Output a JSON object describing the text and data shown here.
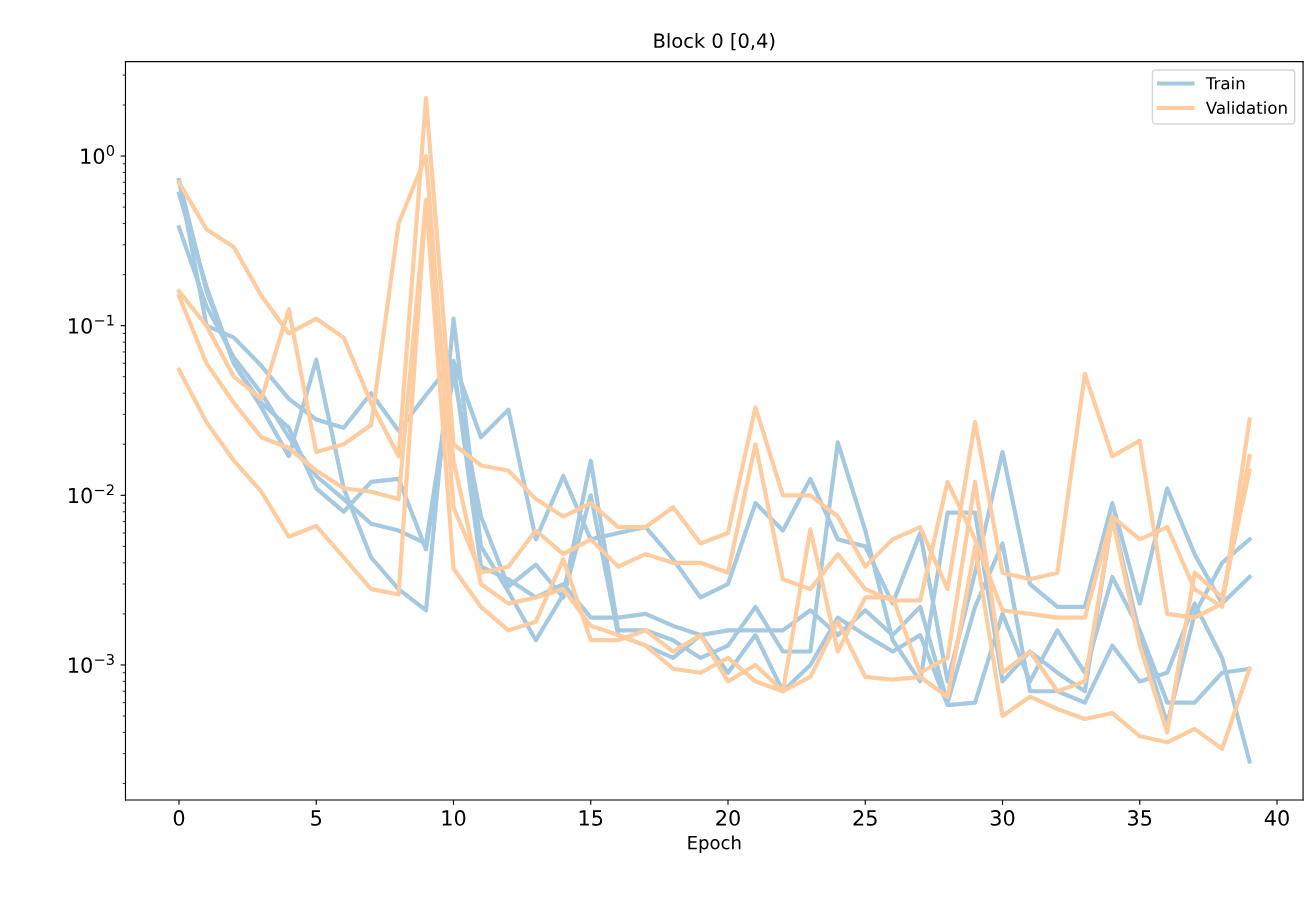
{
  "chart_data": {
    "type": "line",
    "title": "Block 0 [0,4)",
    "xlabel": "Epoch",
    "x": [
      0,
      1,
      2,
      3,
      4,
      5,
      6,
      7,
      8,
      9,
      10,
      11,
      12,
      13,
      14,
      15,
      16,
      17,
      18,
      19,
      20,
      21,
      22,
      23,
      24,
      25,
      26,
      27,
      28,
      29,
      30,
      31,
      32,
      33,
      34,
      35,
      36,
      37,
      38,
      39
    ],
    "xlim": [
      -1.95,
      40.95
    ],
    "xticks": [
      0,
      5,
      10,
      15,
      20,
      25,
      30,
      35,
      40
    ],
    "log": "y",
    "ylim": [
      0.00016,
      3.6
    ],
    "yticks": [
      {
        "value": 0.001,
        "label": "10$^{−3}$"
      },
      {
        "value": 0.01,
        "label": "10$^{−2}$"
      },
      {
        "value": 0.1,
        "label": "10$^{−1}$"
      },
      {
        "value": 1,
        "label": "10$^{0}$"
      }
    ],
    "legend": "top right",
    "grid": false,
    "series": [
      {
        "name": "Train",
        "color": "#a5c9e1",
        "values": [
          0.72,
          0.1,
          0.085,
          0.058,
          0.037,
          0.028,
          0.025,
          0.04,
          0.024,
          0.039,
          0.062,
          0.022,
          0.032,
          0.0055,
          0.013,
          0.0055,
          0.006,
          0.0065,
          0.0042,
          0.0025,
          0.003,
          0.009,
          0.0062,
          0.0125,
          0.0055,
          0.005,
          0.0023,
          0.006,
          0.0008,
          0.0035,
          0.018,
          0.003,
          0.0022,
          0.0022,
          0.009,
          0.0023,
          0.011,
          0.0045,
          0.0023,
          0.0033
        ]
      },
      {
        "color": "#a5c9e1",
        "values": [
          0.6,
          0.17,
          0.06,
          0.033,
          0.017,
          0.063,
          0.011,
          0.0043,
          0.0028,
          0.0021,
          0.11,
          0.005,
          0.0027,
          0.0014,
          0.0026,
          0.016,
          0.0016,
          0.0016,
          0.0014,
          0.0011,
          0.0013,
          0.0022,
          0.0012,
          0.0012,
          0.0205,
          0.0062,
          0.0014,
          0.0008,
          0.0079,
          0.0079,
          0.0008,
          0.0012,
          0.0009,
          0.0007,
          0.0075,
          0.0015,
          0.00045,
          0.002,
          0.004,
          0.0055
        ]
      },
      {
        "color": "#a5c9e1",
        "values": [
          0.38,
          0.13,
          0.065,
          0.04,
          0.022,
          0.013,
          0.0095,
          0.0068,
          0.0062,
          0.0052,
          0.06,
          0.0038,
          0.0032,
          0.0025,
          0.003,
          0.0019,
          0.0019,
          0.002,
          0.0017,
          0.0015,
          0.0016,
          0.0016,
          0.0016,
          0.0021,
          0.0015,
          0.0021,
          0.0015,
          0.0022,
          0.0006,
          0.0022,
          0.0052,
          0.0007,
          0.0007,
          0.0006,
          0.0013,
          0.0008,
          0.0009,
          0.0023,
          0.0011,
          0.00027
        ]
      },
      {
        "color": "#a5c9e1",
        "values": [
          0.72,
          0.16,
          0.06,
          0.035,
          0.025,
          0.011,
          0.008,
          0.012,
          0.0125,
          0.0048,
          0.052,
          0.0075,
          0.0029,
          0.0039,
          0.0025,
          0.01,
          0.0015,
          0.0013,
          0.0011,
          0.0015,
          0.0009,
          0.0015,
          0.0007,
          0.001,
          0.0019,
          0.0015,
          0.0012,
          0.0015,
          0.00058,
          0.0006,
          0.002,
          0.0008,
          0.0016,
          0.0009,
          0.0033,
          0.0016,
          0.0006,
          0.0006,
          0.0009,
          0.00095
        ]
      },
      {
        "name": "Validation",
        "color": "#ffcc9f",
        "values": [
          0.7,
          0.37,
          0.29,
          0.15,
          0.09,
          0.11,
          0.085,
          0.035,
          0.017,
          2.2,
          0.02,
          0.015,
          0.014,
          0.0095,
          0.0075,
          0.009,
          0.0065,
          0.0065,
          0.0085,
          0.0052,
          0.006,
          0.033,
          0.01,
          0.01,
          0.0075,
          0.0038,
          0.0055,
          0.0065,
          0.0028,
          0.027,
          0.0035,
          0.0032,
          0.0035,
          0.052,
          0.017,
          0.021,
          0.002,
          0.0019,
          0.0023,
          0.017
        ]
      },
      {
        "color": "#ffcc9f",
        "values": [
          0.16,
          0.1,
          0.05,
          0.037,
          0.125,
          0.018,
          0.02,
          0.026,
          0.4,
          1.0,
          0.0085,
          0.0035,
          0.0038,
          0.0062,
          0.0045,
          0.0055,
          0.0038,
          0.0045,
          0.004,
          0.004,
          0.0035,
          0.02,
          0.0032,
          0.0028,
          0.0045,
          0.0028,
          0.0024,
          0.0024,
          0.012,
          0.0055,
          0.0021,
          0.002,
          0.0019,
          0.0019,
          0.0075,
          0.0055,
          0.0065,
          0.0028,
          0.0022,
          0.028
        ]
      },
      {
        "color": "#ffcc9f",
        "values": [
          0.15,
          0.06,
          0.035,
          0.022,
          0.019,
          0.014,
          0.011,
          0.0105,
          0.0095,
          0.55,
          0.0037,
          0.0022,
          0.0016,
          0.0018,
          0.0042,
          0.0014,
          0.0014,
          0.0016,
          0.0012,
          0.0015,
          0.0008,
          0.001,
          0.0007,
          0.0063,
          0.0012,
          0.0025,
          0.0025,
          0.0009,
          0.0011,
          0.012,
          0.0009,
          0.0012,
          0.0007,
          0.0008,
          0.0073,
          0.0013,
          0.0004,
          0.0035,
          0.0025,
          0.014
        ]
      },
      {
        "color": "#ffcc9f",
        "values": [
          0.055,
          0.027,
          0.016,
          0.0105,
          0.0057,
          0.0066,
          0.0043,
          0.0028,
          0.0026,
          0.55,
          0.016,
          0.003,
          0.0023,
          0.0025,
          0.0028,
          0.0017,
          0.0015,
          0.0013,
          0.00095,
          0.0009,
          0.0011,
          0.0008,
          0.0007,
          0.00085,
          0.0018,
          0.00085,
          0.00082,
          0.00085,
          0.00065,
          0.005,
          0.0005,
          0.00065,
          0.00055,
          0.00048,
          0.00052,
          0.00038,
          0.00035,
          0.00042,
          0.00032,
          0.00095
        ]
      }
    ]
  }
}
